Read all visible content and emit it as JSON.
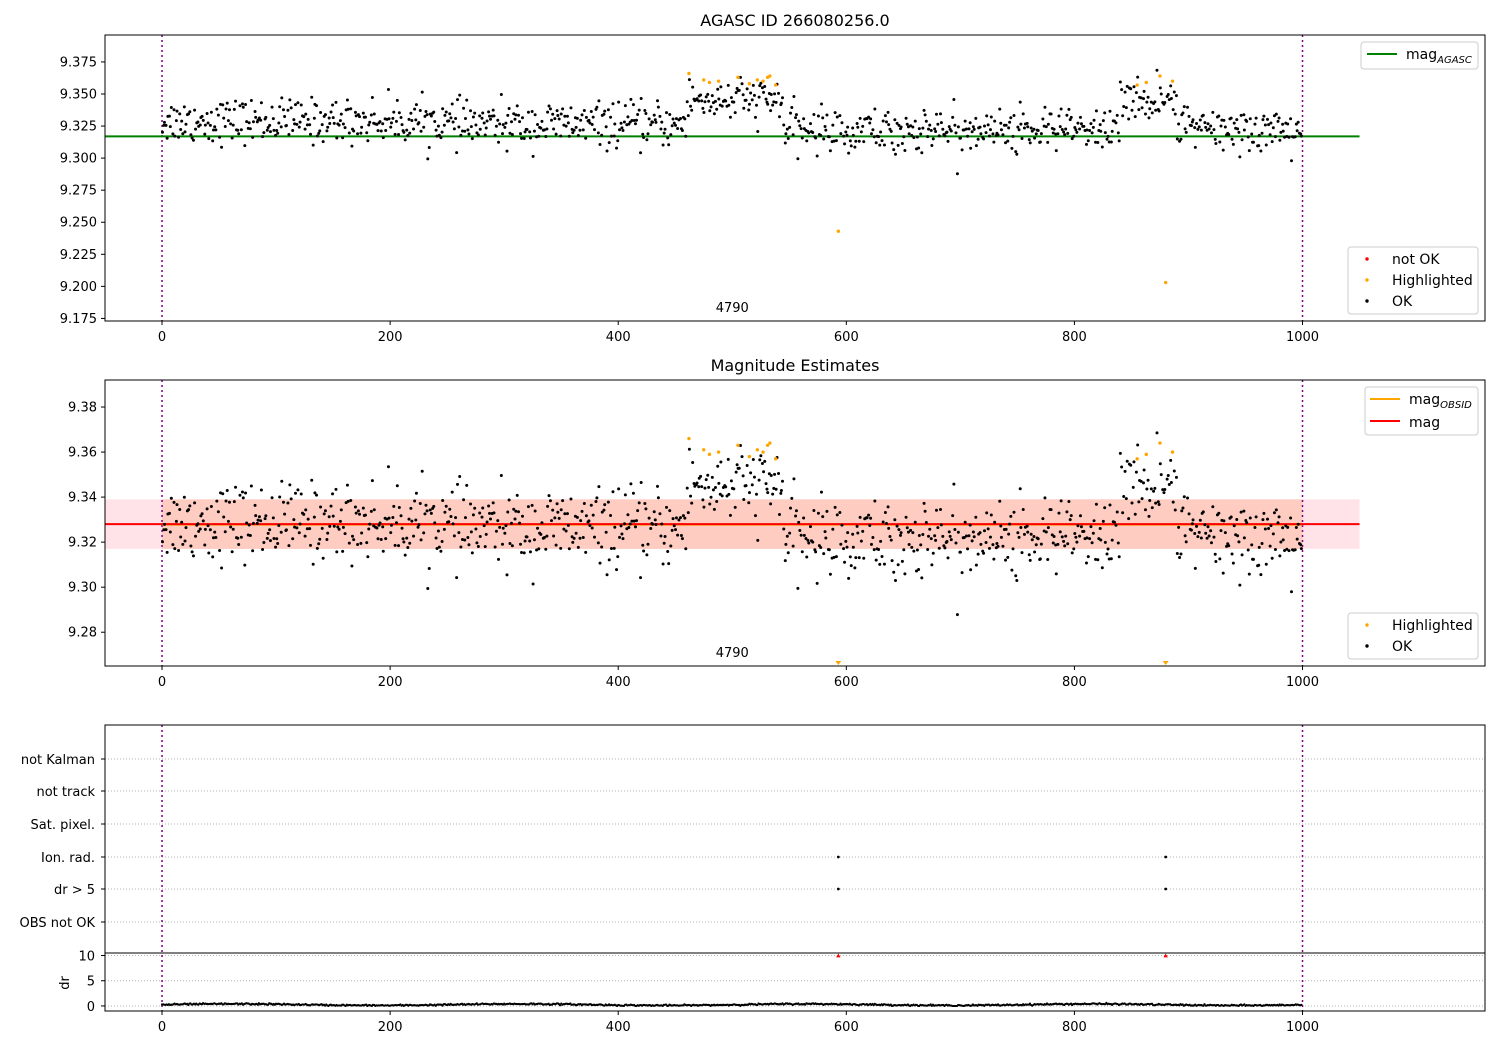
{
  "colors": {
    "ok": "#000000",
    "highlighted": "#ffa500",
    "not_ok": "#ff0000",
    "mag_agasc_line": "#008000",
    "mag_line": "#ff0000",
    "mag_obsid_line": "#ffa500",
    "band_outer": "#ffc0cb",
    "band_inner": "#ffa07a",
    "vline": "#800080",
    "grid": "#b0b0b0"
  },
  "chart_data": [
    {
      "type": "scatter",
      "title": "AGASC ID 266080256.0",
      "x_ticks": [
        "0",
        "200",
        "400",
        "600",
        "800",
        "1000"
      ],
      "y_ticks": [
        "9.175",
        "9.200",
        "9.225",
        "9.250",
        "9.275",
        "9.300",
        "9.325",
        "9.350",
        "9.375"
      ],
      "xlim": [
        -50,
        1160
      ],
      "ylim": [
        9.173,
        9.396
      ],
      "obsid_label": "4790",
      "obsid_label_x": 500,
      "vlines_x": [
        0,
        1000
      ],
      "mag_agasc": 9.317,
      "hline_range": [
        -50,
        1050
      ],
      "series": [
        {
          "name": "not OK",
          "values": []
        },
        {
          "name": "Highlighted",
          "points": [
            [
              462,
              9.366
            ],
            [
              475,
              9.361
            ],
            [
              480,
              9.359
            ],
            [
              488,
              9.36
            ],
            [
              505,
              9.363
            ],
            [
              515,
              9.358
            ],
            [
              522,
              9.361
            ],
            [
              527,
              9.36
            ],
            [
              531,
              9.363
            ],
            [
              533,
              9.364
            ],
            [
              538,
              9.357
            ],
            [
              593,
              9.243
            ],
            [
              855,
              9.357
            ],
            [
              863,
              9.359
            ],
            [
              875,
              9.364
            ],
            [
              880,
              9.203
            ],
            [
              886,
              9.36
            ]
          ]
        },
        {
          "name": "OK",
          "values": "generated: ~1000 black points, x 0 to 1000, y around 9.32 to 9.35"
        }
      ],
      "legend_top": [
        "mag_AGASC"
      ],
      "legend_bottom": [
        "not OK",
        "Highlighted",
        "OK"
      ]
    },
    {
      "type": "scatter",
      "title": "Magnitude Estimates",
      "x_ticks": [
        "0",
        "200",
        "400",
        "600",
        "800",
        "1000"
      ],
      "y_ticks": [
        "9.28",
        "9.30",
        "9.32",
        "9.34",
        "9.36",
        "9.38"
      ],
      "xlim": [
        -50,
        1160
      ],
      "ylim": [
        9.265,
        9.392
      ],
      "obsid_label": "4790",
      "obsid_label_x": 500,
      "vlines_x": [
        0,
        1000
      ],
      "mag": 9.328,
      "mag_band_outer": [
        9.317,
        9.339
      ],
      "mag_band_inner": [
        9.317,
        9.339
      ],
      "series": [
        {
          "name": "Highlighted",
          "points": [
            [
              462,
              9.366
            ],
            [
              475,
              9.361
            ],
            [
              480,
              9.359
            ],
            [
              488,
              9.36
            ],
            [
              505,
              9.363
            ],
            [
              515,
              9.358
            ],
            [
              522,
              9.361
            ],
            [
              527,
              9.36
            ],
            [
              531,
              9.363
            ],
            [
              533,
              9.364
            ],
            [
              538,
              9.357
            ],
            [
              855,
              9.357
            ],
            [
              863,
              9.359
            ],
            [
              875,
              9.364
            ],
            [
              886,
              9.36
            ]
          ]
        },
        {
          "name": "OK",
          "values": "same as above"
        }
      ],
      "out_of_range_markers_x": [
        593,
        880
      ],
      "legend_top": [
        "mag_OBSID",
        "mag"
      ],
      "legend_bottom": [
        "Highlighted",
        "OK"
      ]
    },
    {
      "type": "scatter",
      "title": "",
      "categories": [
        "not Kalman",
        "not track",
        "Sat. pixel.",
        "Ion. rad.",
        "dr > 5",
        "OBS not OK"
      ],
      "x_ticks": [
        "0",
        "200",
        "400",
        "600",
        "800",
        "1000"
      ],
      "xlim": [
        -50,
        1160
      ],
      "vlines_x": [
        0,
        1000
      ],
      "flag_points": [
        {
          "category": "Ion. rad.",
          "x": [
            593,
            880
          ]
        },
        {
          "category": "dr > 5",
          "x": [
            593,
            880
          ]
        }
      ],
      "dr_ylabel": "dr",
      "dr_ticks": [
        "0",
        "5",
        "10"
      ],
      "dr_ylim": [
        -1,
        10.5
      ],
      "dr_outliers": [
        [
          593,
          10
        ],
        [
          880,
          10
        ]
      ],
      "dr_baseline": "small values 0 to 0.8 across x 0 to 1000"
    }
  ],
  "legend_labels": {
    "mag_agasc_main": "mag",
    "mag_agasc_sub": "AGASC",
    "mag_obsid_main": "mag",
    "mag_obsid_sub": "OBSID",
    "mag": "mag",
    "not_ok": "not OK",
    "highlighted": "Highlighted",
    "ok": "OK"
  }
}
